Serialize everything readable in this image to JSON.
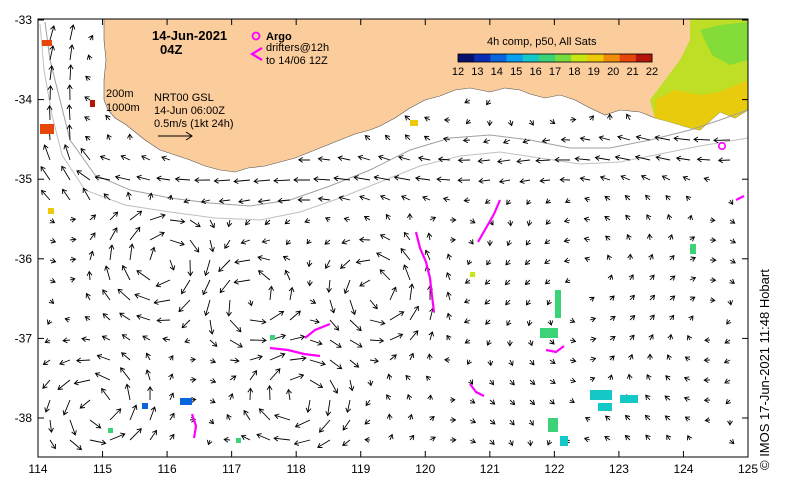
{
  "map": {
    "title_date": "14-Jun-2021",
    "title_time": "04Z",
    "argo_label": "Argo",
    "drifters_line1": "drifters@12h",
    "drifters_line2": "to 14/06 12Z",
    "contour_200": "200m",
    "contour_1000": "1000m",
    "vector_source": "NRT00 GSL",
    "vector_time": "14-Jun 06:00Z",
    "vector_scale": "0.5m/s (1kt 24h)",
    "colorbar_title": "4h comp, p50, All Sats",
    "colorbar_ticks": [
      "12",
      "13",
      "14",
      "15",
      "16",
      "17",
      "18",
      "19",
      "20",
      "21",
      "22"
    ],
    "colorbar_colors": [
      "#08106e",
      "#0a2db4",
      "#0a64dc",
      "#0aa0f0",
      "#14c8c8",
      "#3cd278",
      "#78dc3c",
      "#c8e614",
      "#f0c80a",
      "#f08c0a",
      "#e6460a",
      "#b4140a"
    ],
    "credit": "© IMOS 17-Jun-2021 11:48 Hobart",
    "x_ticks": [
      "114",
      "115",
      "116",
      "117",
      "118",
      "119",
      "120",
      "121",
      "122",
      "123",
      "124",
      "125"
    ],
    "y_ticks": [
      "-33",
      "-34",
      "-35",
      "-36",
      "-37",
      "-38"
    ],
    "land_color": "#fbcc9c",
    "drifter_color": "#ff00ff"
  }
}
